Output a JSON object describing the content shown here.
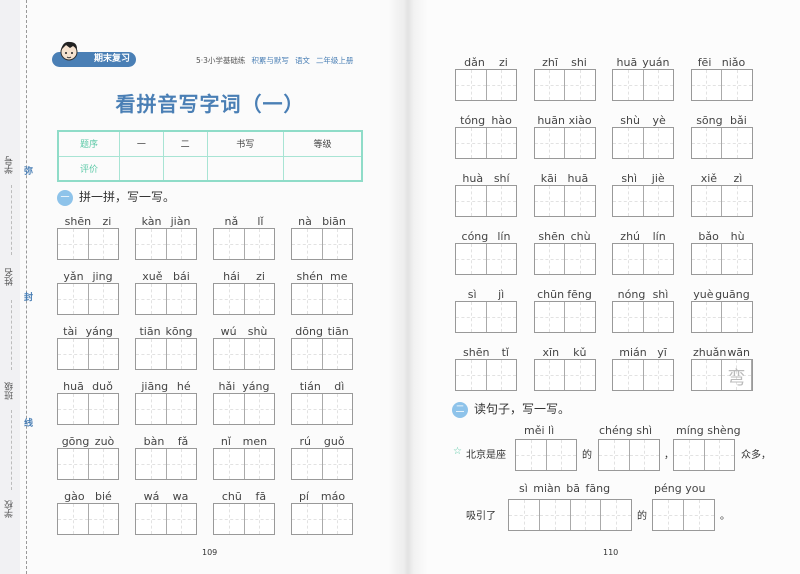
{
  "margin": {
    "labels": [
      "学号",
      "姓名",
      "班级",
      "学校"
    ],
    "seal": [
      "弥",
      "封",
      "线"
    ]
  },
  "left_page": {
    "badge": "期末复习",
    "header": {
      "series": "5·3小学基础练",
      "book": "积累与默写",
      "subject": "语文",
      "grade": "二年级上册"
    },
    "title": "看拼音写字词（一）",
    "score_table": {
      "row1": [
        "题序",
        "一",
        "二",
        "书写",
        "等级"
      ],
      "row2": [
        "评价",
        "",
        "",
        "",
        ""
      ]
    },
    "section1": {
      "number": "一",
      "label": "拼一拼，写一写。"
    },
    "items": [
      [
        "shēn",
        "zi"
      ],
      [
        "kàn",
        "jiàn"
      ],
      [
        "nǎ",
        "lǐ"
      ],
      [
        "nà",
        "biān"
      ],
      [
        "yǎn",
        "jing"
      ],
      [
        "xuě",
        "bái"
      ],
      [
        "hái",
        "zi"
      ],
      [
        "shén",
        "me"
      ],
      [
        "tài",
        "yáng"
      ],
      [
        "tiān",
        "kōng"
      ],
      [
        "wú",
        "shù"
      ],
      [
        "dōng",
        "tiān"
      ],
      [
        "huā",
        "duǒ"
      ],
      [
        "jiāng",
        "hé"
      ],
      [
        "hǎi",
        "yáng"
      ],
      [
        "tián",
        "dì"
      ],
      [
        "gōng",
        "zuò"
      ],
      [
        "bàn",
        "fǎ"
      ],
      [
        "nǐ",
        "men"
      ],
      [
        "rú",
        "guǒ"
      ],
      [
        "gào",
        "bié"
      ],
      [
        "wá",
        "wa"
      ],
      [
        "chū",
        "fā"
      ],
      [
        "pí",
        "máo"
      ]
    ],
    "page_number": "109"
  },
  "right_page": {
    "items": [
      [
        "dǎn",
        "zi"
      ],
      [
        "zhī",
        "shi"
      ],
      [
        "huā",
        "yuán"
      ],
      [
        "fēi",
        "niǎo"
      ],
      [
        "tóng",
        "hào"
      ],
      [
        "huān",
        "xiào"
      ],
      [
        "shù",
        "yè"
      ],
      [
        "sōng",
        "bǎi"
      ],
      [
        "huà",
        "shí"
      ],
      [
        "kāi",
        "huā"
      ],
      [
        "shì",
        "jiè"
      ],
      [
        "xiě",
        "zì"
      ],
      [
        "cóng",
        "lín"
      ],
      [
        "shēn",
        "chù"
      ],
      [
        "zhú",
        "lín"
      ],
      [
        "bǎo",
        "hù"
      ],
      [
        "sì",
        "jì"
      ],
      [
        "chūn",
        "fēng"
      ],
      [
        "nóng",
        "shì"
      ],
      [
        "yuè",
        "guāng"
      ],
      [
        "shēn",
        "tǐ"
      ],
      [
        "xīn",
        "kǔ"
      ],
      [
        "mián",
        "yī"
      ],
      [
        "zhuǎn",
        "wān"
      ]
    ],
    "hint_char": "弯",
    "section2": {
      "number": "二",
      "label": "读句子，写一写。"
    },
    "sentence1": {
      "star": "☆",
      "parts": [
        "北京是座",
        "的",
        "，",
        "众多，"
      ],
      "pinyin": [
        "měi  lì",
        "chéng  shì",
        "míng shèng"
      ]
    },
    "sentence2": {
      "parts": [
        "吸引了",
        "的",
        "。"
      ],
      "pinyin": [
        "sì   miàn   bā   fāng",
        "péng  you"
      ]
    },
    "page_number": "110"
  },
  "colors": {
    "accent_blue": "#4a7fb5",
    "table_teal": "#8fdcc8",
    "section_dot": "#8ec3ea"
  }
}
